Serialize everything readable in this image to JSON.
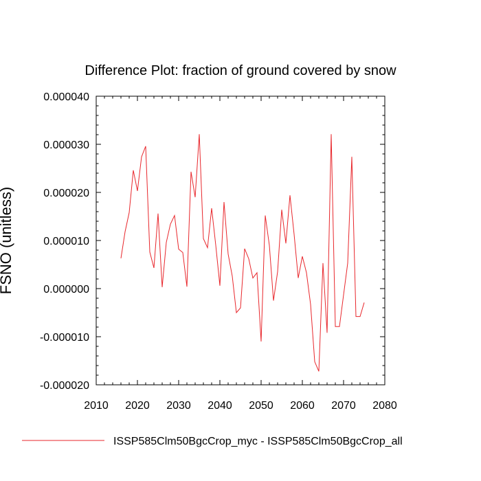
{
  "chart_data": {
    "type": "line",
    "title": "Difference Plot: fraction of ground covered by snow",
    "ylabel": "FSNO (unitless)",
    "xlabel": "",
    "xlim": [
      2010,
      2080
    ],
    "ylim": [
      -2e-05,
      4e-05
    ],
    "x_ticks": [
      2010,
      2020,
      2030,
      2040,
      2050,
      2060,
      2070,
      2080
    ],
    "x_tick_labels": [
      "2010",
      "2020",
      "2030",
      "2040",
      "2050",
      "2060",
      "2070",
      "2080"
    ],
    "y_ticks": [
      -2e-05,
      -1e-05,
      0,
      1e-05,
      2e-05,
      3e-05,
      4e-05
    ],
    "y_tick_labels": [
      "-0.000020",
      "-0.000010",
      "0.000000",
      "0.000010",
      "0.000020",
      "0.000030",
      "0.000040"
    ],
    "legend_position": "bottom",
    "series": [
      {
        "name": "ISSP585Clm50BgcCrop_myc - ISSP585Clm50BgcCrop_all",
        "color": "#e8262b",
        "x": [
          2016,
          2017,
          2018,
          2019,
          2020,
          2021,
          2022,
          2023,
          2024,
          2025,
          2026,
          2027,
          2028,
          2029,
          2030,
          2031,
          2032,
          2033,
          2034,
          2035,
          2036,
          2037,
          2038,
          2039,
          2040,
          2041,
          2042,
          2043,
          2044,
          2045,
          2046,
          2047,
          2048,
          2049,
          2050,
          2051,
          2052,
          2053,
          2054,
          2055,
          2056,
          2057,
          2058,
          2059,
          2060,
          2061,
          2062,
          2063,
          2064,
          2065,
          2066,
          2067,
          2068,
          2069,
          2070,
          2071,
          2072,
          2073,
          2074,
          2075
        ],
        "values": [
          6.3e-06,
          1.18e-05,
          1.58e-05,
          2.46e-05,
          2.03e-05,
          2.74e-05,
          2.96e-05,
          7.6e-06,
          4.3e-06,
          1.56e-05,
          3e-07,
          9.6e-06,
          1.34e-05,
          1.52e-05,
          8.2e-06,
          7.5e-06,
          4e-07,
          2.43e-05,
          1.9e-05,
          3.21e-05,
          1.04e-05,
          8.5e-06,
          1.67e-05,
          9e-06,
          6e-07,
          1.8e-05,
          7.2e-06,
          2.6e-06,
          -5e-06,
          -4e-06,
          8.3e-06,
          6.2e-06,
          2.2e-06,
          3.3e-06,
          -1.1e-05,
          1.52e-05,
          9e-06,
          -2.5e-06,
          3.5e-06,
          1.64e-05,
          9.4e-06,
          1.94e-05,
          1.13e-05,
          2.2e-06,
          6.7e-06,
          3.3e-06,
          -3.3e-06,
          -1.52e-05,
          -1.72e-05,
          5.3e-06,
          -9.2e-06,
          3.21e-05,
          -7.9e-06,
          -7.9e-06,
          -1.3e-06,
          5.3e-06,
          2.74e-05,
          -5.8e-06,
          -5.8e-06,
          -2.9e-06
        ]
      }
    ]
  }
}
